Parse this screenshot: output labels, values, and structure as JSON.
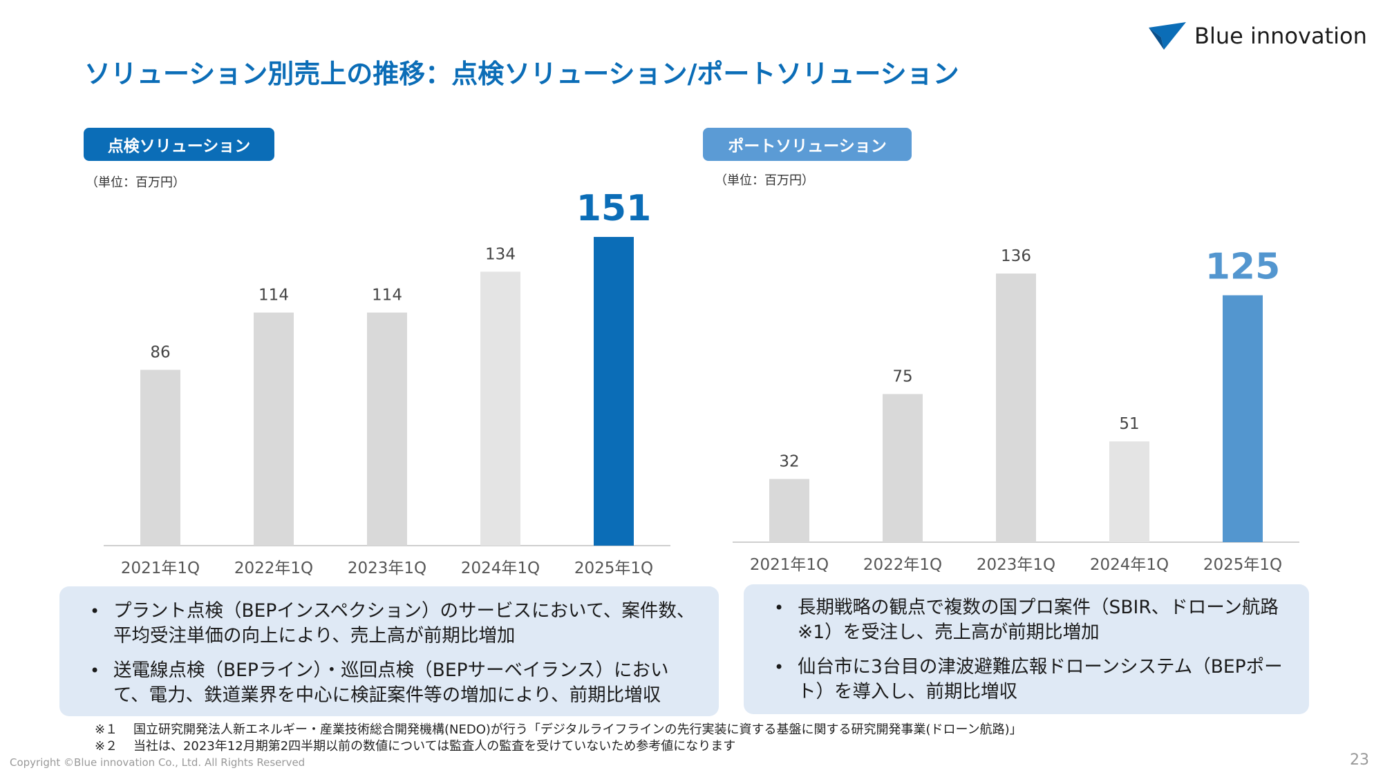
{
  "slide": {
    "title": "ソリューション別売上の推移：点検ソリューション/ポートソリューション",
    "logo_text": "Blue innovation",
    "copyright": "Copyright ©Blue innovation Co., Ltd. All Rights Reserved",
    "page_number": "23"
  },
  "left_panel": {
    "label": "点検ソリューション",
    "unit": "（単位：百万円）",
    "bullets": [
      "プラント点検（BEPインスペクション）のサービスにおいて、案件数、平均受注単価の向上により、売上高が前期比増加",
      "送電線点検（BEPライン）・巡回点検（BEPサーベイランス）において、電力、鉄道業界を中心に検証案件等の増加により、前期比増収"
    ]
  },
  "right_panel": {
    "label": "ポートソリューション",
    "unit": "（単位：百万円）",
    "bullets": [
      "長期戦略の観点で複数の国プロ案件（SBIR、ドローン航路※1）を受注し、売上高が前期比増加",
      "仙台市に3台目の津波避難広報ドローンシステム（BEPポート）を導入し、前期比増収"
    ]
  },
  "footnotes": [
    {
      "mark": "※１",
      "text": "国立研究開発法人新エネルギー・産業技術総合開発機構(NEDO)が行う「デジタルライフラインの先行実装に資する基盤に関する研究開発事業(ドローン航路)」"
    },
    {
      "mark": "※２",
      "text": "当社は、2023年12月期第2四半期以前の数値については監査人の監査を受けていないため参考値になります"
    }
  ],
  "colors": {
    "title": "#0b6db7",
    "left_pill": "#0b6db7",
    "right_pill": "#5b9bd5",
    "bar_gray": "#d9d9d9",
    "bar_gray_light": "#e4e4e4",
    "highlight_left": "#0b6db7",
    "highlight_right": "#5396cf",
    "box_bg": "#dfe9f5"
  },
  "chart_data": [
    {
      "type": "bar",
      "categories": [
        "2021年1Q",
        "2022年1Q",
        "2023年1Q",
        "2024年1Q",
        "2025年1Q"
      ],
      "values": [
        86,
        114,
        114,
        134,
        151
      ],
      "highlight_index": 4,
      "labels": [
        "86",
        "114",
        "114",
        "134",
        "151"
      ]
    },
    {
      "type": "bar",
      "categories": [
        "2021年1Q",
        "2022年1Q",
        "2023年1Q",
        "2024年1Q",
        "2025年1Q"
      ],
      "values": [
        32,
        75,
        136,
        51,
        125
      ],
      "highlight_index": 4,
      "labels": [
        "32",
        "75",
        "136",
        "51",
        "125"
      ]
    }
  ]
}
